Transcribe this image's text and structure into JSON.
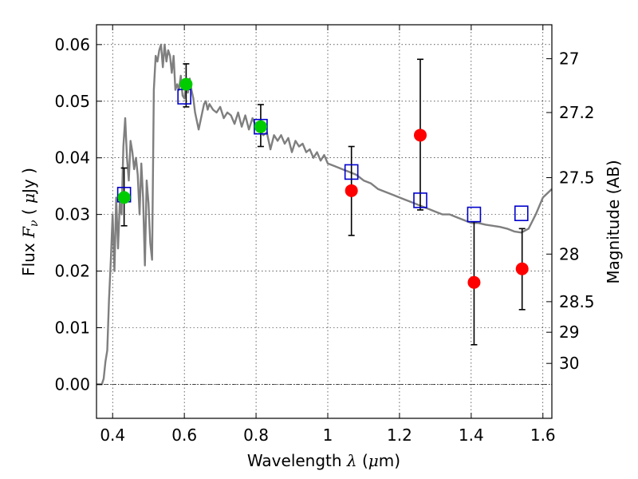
{
  "chart_data": {
    "type": "scatter",
    "title": "",
    "xlabel": {
      "prefix": "Wavelength  ",
      "symbol": "λ",
      "mid": " (",
      "unit_sym": "μ",
      "suffix": "m)"
    },
    "ylabel": {
      "prefix": "Flux  ",
      "symbol": "F",
      "sub": "ν",
      "mid": "  ( ",
      "unit_sym": "μ",
      "suffix": "Jy )"
    },
    "y2label": "Magnitude (AB)",
    "xlim": [
      0.355,
      1.625
    ],
    "ylim": [
      -0.006,
      0.0635
    ],
    "grid": true,
    "x_ticks": [
      {
        "value": 0.4,
        "label": "0.4"
      },
      {
        "value": 0.6,
        "label": "0.6"
      },
      {
        "value": 0.8,
        "label": "0.8"
      },
      {
        "value": 1.0,
        "label": "1"
      },
      {
        "value": 1.2,
        "label": "1.2"
      },
      {
        "value": 1.4,
        "label": "1.4"
      },
      {
        "value": 1.6,
        "label": "1.6"
      }
    ],
    "y_ticks": [
      {
        "value": 0.0,
        "label": "0.00"
      },
      {
        "value": 0.01,
        "label": "0.01"
      },
      {
        "value": 0.02,
        "label": "0.02"
      },
      {
        "value": 0.03,
        "label": "0.03"
      },
      {
        "value": 0.04,
        "label": "0.04"
      },
      {
        "value": 0.05,
        "label": "0.05"
      },
      {
        "value": 0.06,
        "label": "0.06"
      }
    ],
    "y2_ticks": [
      {
        "flux": 0.0575,
        "label": "27"
      },
      {
        "flux": 0.048,
        "label": "27.2"
      },
      {
        "flux": 0.0365,
        "label": "27.5"
      },
      {
        "flux": 0.023,
        "label": "28"
      },
      {
        "flux": 0.0146,
        "label": "28.5"
      },
      {
        "flux": 0.0092,
        "label": "29"
      },
      {
        "flux": 0.0037,
        "label": "30"
      }
    ],
    "zero_line": 0.0,
    "series": [
      {
        "kind": "line",
        "color": "#7f7f7f",
        "x": [
          0.355,
          0.37,
          0.375,
          0.38,
          0.385,
          0.39,
          0.395,
          0.4,
          0.405,
          0.41,
          0.415,
          0.42,
          0.425,
          0.43,
          0.435,
          0.44,
          0.445,
          0.45,
          0.455,
          0.46,
          0.465,
          0.47,
          0.475,
          0.48,
          0.485,
          0.49,
          0.495,
          0.5,
          0.505,
          0.51,
          0.515,
          0.52,
          0.525,
          0.53,
          0.535,
          0.54,
          0.545,
          0.55,
          0.555,
          0.56,
          0.565,
          0.57,
          0.575,
          0.58,
          0.585,
          0.59,
          0.595,
          0.6,
          0.605,
          0.61,
          0.615,
          0.62,
          0.625,
          0.63,
          0.64,
          0.65,
          0.655,
          0.66,
          0.665,
          0.67,
          0.68,
          0.69,
          0.7,
          0.71,
          0.72,
          0.73,
          0.74,
          0.75,
          0.76,
          0.77,
          0.78,
          0.79,
          0.8,
          0.81,
          0.82,
          0.83,
          0.84,
          0.85,
          0.86,
          0.87,
          0.88,
          0.89,
          0.9,
          0.91,
          0.92,
          0.93,
          0.94,
          0.95,
          0.96,
          0.97,
          0.98,
          0.99,
          1.0,
          1.02,
          1.04,
          1.06,
          1.08,
          1.1,
          1.12,
          1.14,
          1.16,
          1.18,
          1.2,
          1.22,
          1.24,
          1.26,
          1.28,
          1.3,
          1.32,
          1.34,
          1.36,
          1.38,
          1.4,
          1.42,
          1.44,
          1.46,
          1.48,
          1.5,
          1.52,
          1.54,
          1.56,
          1.58,
          1.6,
          1.625
        ],
        "y": [
          0.0,
          0.0,
          0.001,
          0.004,
          0.006,
          0.015,
          0.022,
          0.03,
          0.02,
          0.033,
          0.024,
          0.032,
          0.03,
          0.042,
          0.047,
          0.04,
          0.036,
          0.043,
          0.041,
          0.038,
          0.04,
          0.037,
          0.03,
          0.039,
          0.033,
          0.021,
          0.036,
          0.032,
          0.025,
          0.022,
          0.052,
          0.058,
          0.057,
          0.059,
          0.06,
          0.056,
          0.06,
          0.057,
          0.059,
          0.058,
          0.055,
          0.058,
          0.052,
          0.053,
          0.052,
          0.0545,
          0.051,
          0.0505,
          0.053,
          0.0515,
          0.054,
          0.052,
          0.0505,
          0.048,
          0.045,
          0.048,
          0.0495,
          0.05,
          0.0485,
          0.0495,
          0.0485,
          0.048,
          0.049,
          0.047,
          0.048,
          0.0475,
          0.046,
          0.048,
          0.0455,
          0.0475,
          0.045,
          0.047,
          0.0455,
          0.045,
          0.044,
          0.0445,
          0.0415,
          0.044,
          0.043,
          0.044,
          0.0425,
          0.0435,
          0.041,
          0.043,
          0.042,
          0.0425,
          0.041,
          0.0415,
          0.04,
          0.041,
          0.0395,
          0.0405,
          0.039,
          0.0385,
          0.038,
          0.0375,
          0.037,
          0.036,
          0.0355,
          0.0345,
          0.034,
          0.0335,
          0.033,
          0.0325,
          0.032,
          0.0315,
          0.031,
          0.0305,
          0.03,
          0.03,
          0.0295,
          0.029,
          0.0285,
          0.0285,
          0.0282,
          0.028,
          0.0278,
          0.0275,
          0.027,
          0.0268,
          0.0275,
          0.03,
          0.033,
          0.0345
        ]
      },
      {
        "kind": "open-square",
        "color": "#0000cc",
        "x": [
          0.432,
          0.6,
          0.813,
          1.066,
          1.258,
          1.408,
          1.54
        ],
        "y": [
          0.0335,
          0.0508,
          0.0455,
          0.0375,
          0.0325,
          0.03,
          0.0302
        ]
      },
      {
        "kind": "circle",
        "color": "#00cc00",
        "x": [
          0.432,
          0.605,
          0.813
        ],
        "y": [
          0.033,
          0.053,
          0.0455
        ]
      },
      {
        "kind": "circle",
        "color": "#ff0000",
        "x": [
          1.066,
          1.258,
          1.408,
          1.542
        ],
        "y": [
          0.0342,
          0.044,
          0.018,
          0.0204
        ]
      }
    ],
    "error_bars": {
      "color": "#000000",
      "x": [
        0.432,
        0.605,
        0.813,
        1.066,
        1.258,
        1.408,
        1.542
      ],
      "low": [
        0.028,
        0.049,
        0.042,
        0.0263,
        0.0308,
        0.007,
        0.0132
      ],
      "high": [
        0.0382,
        0.0566,
        0.0494,
        0.042,
        0.0574,
        0.0287,
        0.0275
      ]
    }
  }
}
